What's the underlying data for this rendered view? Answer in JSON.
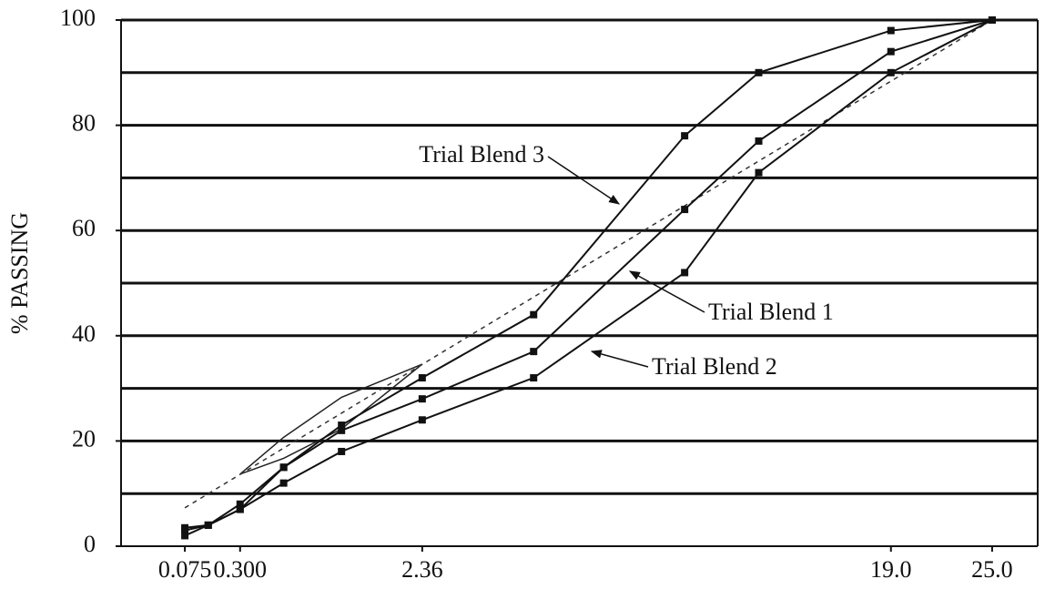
{
  "chart_data": {
    "type": "line",
    "y_label": "% PASSING",
    "x": [
      0.075,
      0.15,
      0.3,
      0.6,
      1.18,
      2.36,
      4.75,
      9.5,
      12.5,
      19.0,
      25.0
    ],
    "series": [
      {
        "name": "Trial Blend 3",
        "color": "#111111",
        "values": [
          3.5,
          4,
          8,
          15,
          23,
          32,
          44,
          78,
          90,
          98,
          100
        ]
      },
      {
        "name": "Trial Blend 1",
        "color": "#111111",
        "values": [
          3,
          4,
          7,
          15,
          22,
          28,
          37,
          64,
          77,
          94,
          100
        ]
      },
      {
        "name": "Trial Blend 2",
        "color": "#111111",
        "values": [
          2,
          4,
          7,
          12,
          18,
          24,
          32,
          52,
          71,
          90,
          100
        ]
      }
    ],
    "max_density_line": {
      "x": [
        0.075,
        25.0
      ],
      "values": [
        7.3,
        100
      ],
      "color": "#333333"
    },
    "restricted_zone": {
      "x": [
        0.3,
        0.6,
        1.18,
        2.36,
        1.18,
        0.6
      ],
      "values": [
        13.7,
        16.7,
        22.3,
        34.6,
        28.3,
        20.7
      ],
      "color": "#222222"
    },
    "xscale": "power",
    "xscale_exponent": 0.45,
    "xlim": [
      0,
      28
    ],
    "xticks": [
      0.075,
      {
        "value": 0.3,
        "label": "0.300"
      },
      2.36,
      {
        "value": 19,
        "label": "19.0"
      },
      {
        "value": 25,
        "label": "25.0"
      }
    ],
    "ylim": [
      0,
      100
    ],
    "yticks": [
      0,
      20,
      40,
      60,
      80,
      100
    ],
    "ygrid": [
      10,
      20,
      30,
      40,
      50,
      60,
      70,
      80,
      90,
      100
    ],
    "grid": true
  }
}
